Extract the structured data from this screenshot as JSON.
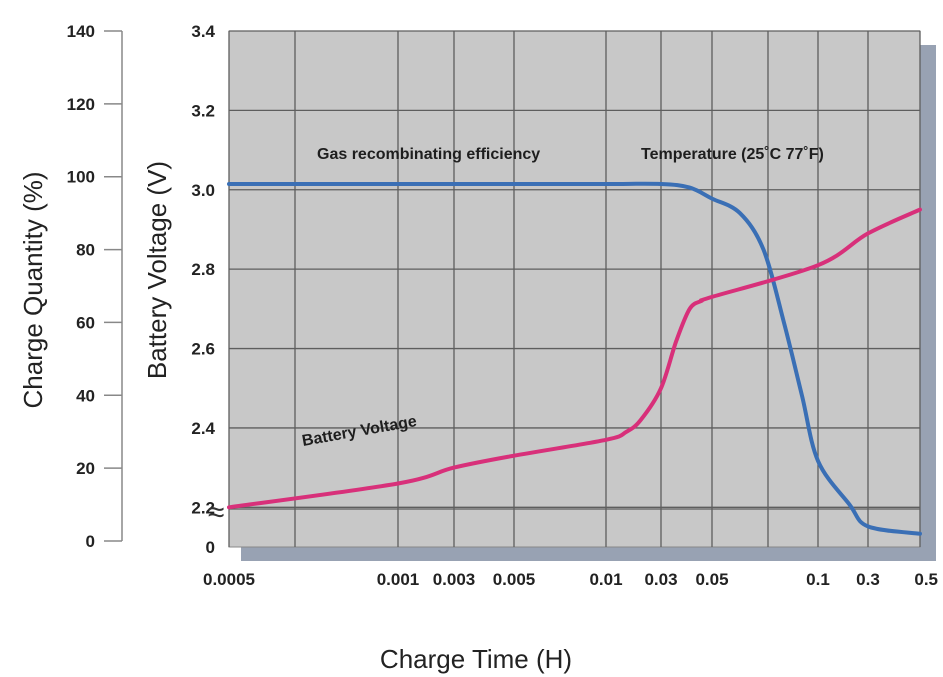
{
  "chart_data": {
    "type": "line",
    "xlabel": "Charge Time (H)",
    "ylabel_left": "Charge Quantity (%)",
    "ylabel_right": "Battery Voltage (V)",
    "x_ticks": [
      "0.0005",
      "0.001",
      "0.003",
      "0.005",
      "0.01",
      "0.03",
      "0.05",
      "0.1",
      "0.3",
      "0.5"
    ],
    "y_left_ticks": [
      "140",
      "120",
      "100",
      "80",
      "60",
      "40",
      "20",
      "0"
    ],
    "y_left_range": [
      0,
      140
    ],
    "y_voltage_ticks": [
      "3.4",
      "3.2",
      "3.0",
      "2.8",
      "2.6",
      "2.4",
      "2.2",
      "0"
    ],
    "y_voltage_range": [
      2.1,
      3.4
    ],
    "grid": true,
    "series": [
      {
        "name": "Gas recombinating efficiency",
        "color": "#3a6fb5",
        "x": [
          "0.0005",
          "0.001",
          "0.003",
          "0.005",
          "0.01",
          "0.03",
          "0.04",
          "0.05",
          "0.06",
          "0.07",
          "0.08",
          "0.09",
          "0.1",
          "0.2",
          "0.3",
          "0.5"
        ],
        "values": [
          98,
          98,
          98,
          98,
          98,
          98,
          97,
          94,
          90,
          80,
          60,
          40,
          22,
          10,
          4,
          2
        ],
        "axis": "left"
      },
      {
        "name": "Battery Voltage",
        "color": "#d8307a",
        "x": [
          "0.0005",
          "0.001",
          "0.003",
          "0.005",
          "0.01",
          "0.015",
          "0.02",
          "0.03",
          "0.035",
          "0.04",
          "0.045",
          "0.05",
          "0.1",
          "0.3",
          "0.5"
        ],
        "values": [
          2.2,
          2.26,
          2.3,
          2.33,
          2.37,
          2.39,
          2.42,
          2.5,
          2.62,
          2.7,
          2.72,
          2.73,
          2.81,
          2.89,
          2.95
        ],
        "axis": "voltage"
      }
    ],
    "annotations": {
      "gas": "Gas recombinating efficiency",
      "temperature": "Temperature (25˚C 77˚F)",
      "voltage": "Battery Voltage"
    },
    "break_symbol": "≈"
  }
}
